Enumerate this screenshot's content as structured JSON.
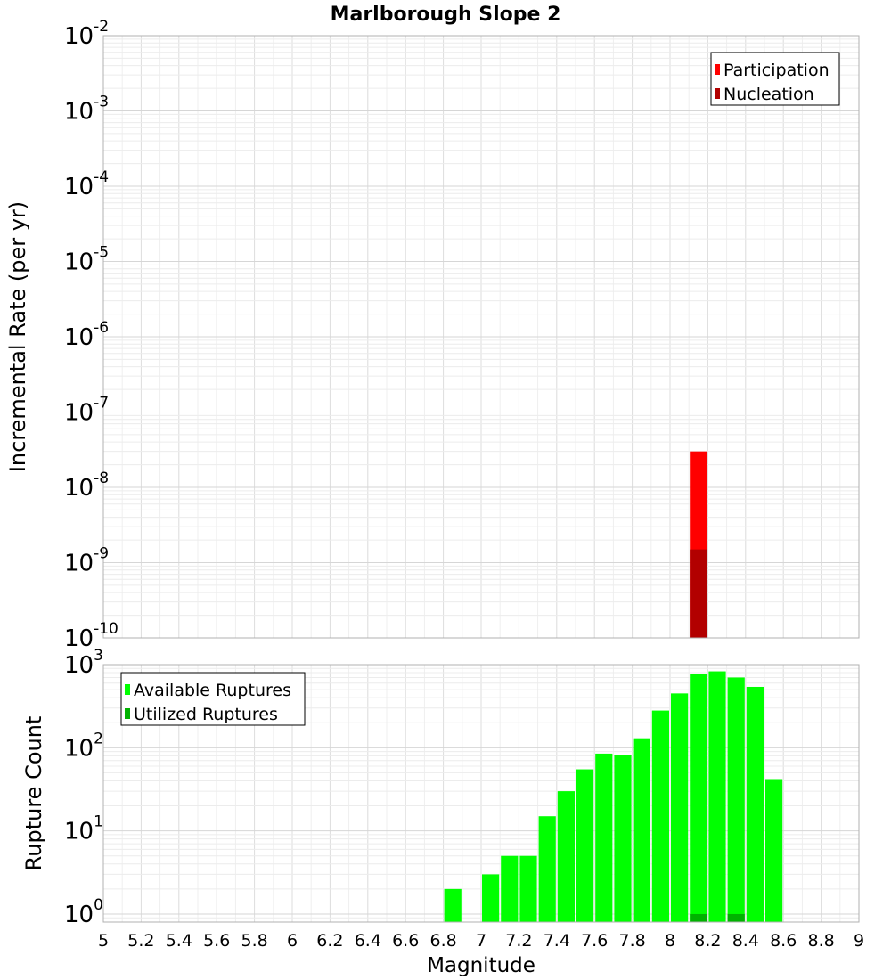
{
  "title": "Marlborough Slope 2",
  "colors": {
    "participation": "#ff0000",
    "nucleation": "#b20000",
    "available": "#00ff00",
    "utilized": "#00b200",
    "grid": "#e6e6e6",
    "frame": "#b0b0b0"
  },
  "chart_data": [
    {
      "type": "bar",
      "name": "top",
      "ylabel": "Incremental Rate (per yr)",
      "yscale": "log",
      "ylim_exponent": [
        -10,
        -2
      ],
      "y_tick_exponents": [
        -10,
        -9,
        -8,
        -7,
        -6,
        -5,
        -4,
        -3,
        -2
      ],
      "xlim": [
        5,
        9
      ],
      "bar_width": 0.1,
      "legend_position": "top-right",
      "series": [
        {
          "name": "Participation",
          "color_key": "participation",
          "points": [
            {
              "x": 8.15,
              "y": 3e-08
            }
          ]
        },
        {
          "name": "Nucleation",
          "color_key": "nucleation",
          "points": [
            {
              "x": 8.15,
              "y": 1.5e-09
            }
          ]
        }
      ]
    },
    {
      "type": "bar",
      "name": "bottom",
      "ylabel": "Rupture Count",
      "xlabel": "Magnitude",
      "yscale": "log",
      "ylim": [
        0.8,
        1000
      ],
      "y_tick_exponents": [
        0,
        1,
        2,
        3
      ],
      "xlim": [
        5,
        9
      ],
      "x_ticks": [
        "5",
        "5.2",
        "5.4",
        "5.6",
        "5.8",
        "6",
        "6.2",
        "6.4",
        "6.6",
        "6.8",
        "7",
        "7.2",
        "7.4",
        "7.6",
        "7.8",
        "8",
        "8.2",
        "8.4",
        "8.6",
        "8.8",
        "9"
      ],
      "bar_width": 0.1,
      "legend_position": "top-left",
      "series": [
        {
          "name": "Available Ruptures",
          "color_key": "available",
          "points": [
            {
              "x": 6.85,
              "y": 2
            },
            {
              "x": 7.05,
              "y": 3
            },
            {
              "x": 7.15,
              "y": 5
            },
            {
              "x": 7.25,
              "y": 5
            },
            {
              "x": 7.35,
              "y": 15
            },
            {
              "x": 7.45,
              "y": 30
            },
            {
              "x": 7.55,
              "y": 55
            },
            {
              "x": 7.65,
              "y": 85
            },
            {
              "x": 7.75,
              "y": 82
            },
            {
              "x": 7.85,
              "y": 130
            },
            {
              "x": 7.95,
              "y": 280
            },
            {
              "x": 8.05,
              "y": 450
            },
            {
              "x": 8.15,
              "y": 780
            },
            {
              "x": 8.25,
              "y": 830
            },
            {
              "x": 8.35,
              "y": 700
            },
            {
              "x": 8.45,
              "y": 540
            },
            {
              "x": 8.55,
              "y": 42
            }
          ]
        },
        {
          "name": "Utilized Ruptures",
          "color_key": "utilized",
          "points": [
            {
              "x": 8.15,
              "y": 1
            },
            {
              "x": 8.35,
              "y": 1
            }
          ]
        }
      ]
    }
  ]
}
